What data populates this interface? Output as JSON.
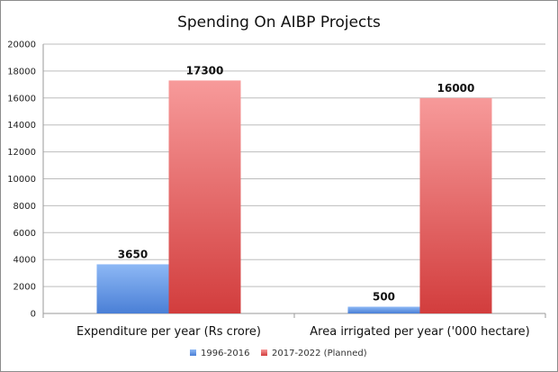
{
  "chart_data": {
    "type": "bar",
    "title": "Spending On AIBP Projects",
    "categories": [
      "Expenditure per year (Rs crore)",
      "Area irrigated per year ('000 hectare)"
    ],
    "series": [
      {
        "name": "1996-2016",
        "values": [
          3650,
          500
        ],
        "color": "#5b8fe0"
      },
      {
        "name": "2017-2022 (Planned)",
        "values": [
          17300,
          16000
        ],
        "color": "#d94646"
      }
    ],
    "ylim": [
      0,
      20000
    ],
    "yticks": [
      "0",
      "2000",
      "4000",
      "6000",
      "8000",
      "10000",
      "12000",
      "14000",
      "16000",
      "18000",
      "20000"
    ],
    "data_labels": [
      [
        "3650",
        "500"
      ],
      [
        "17300",
        "16000"
      ]
    ],
    "grid": true,
    "legend_position": "bottom"
  }
}
